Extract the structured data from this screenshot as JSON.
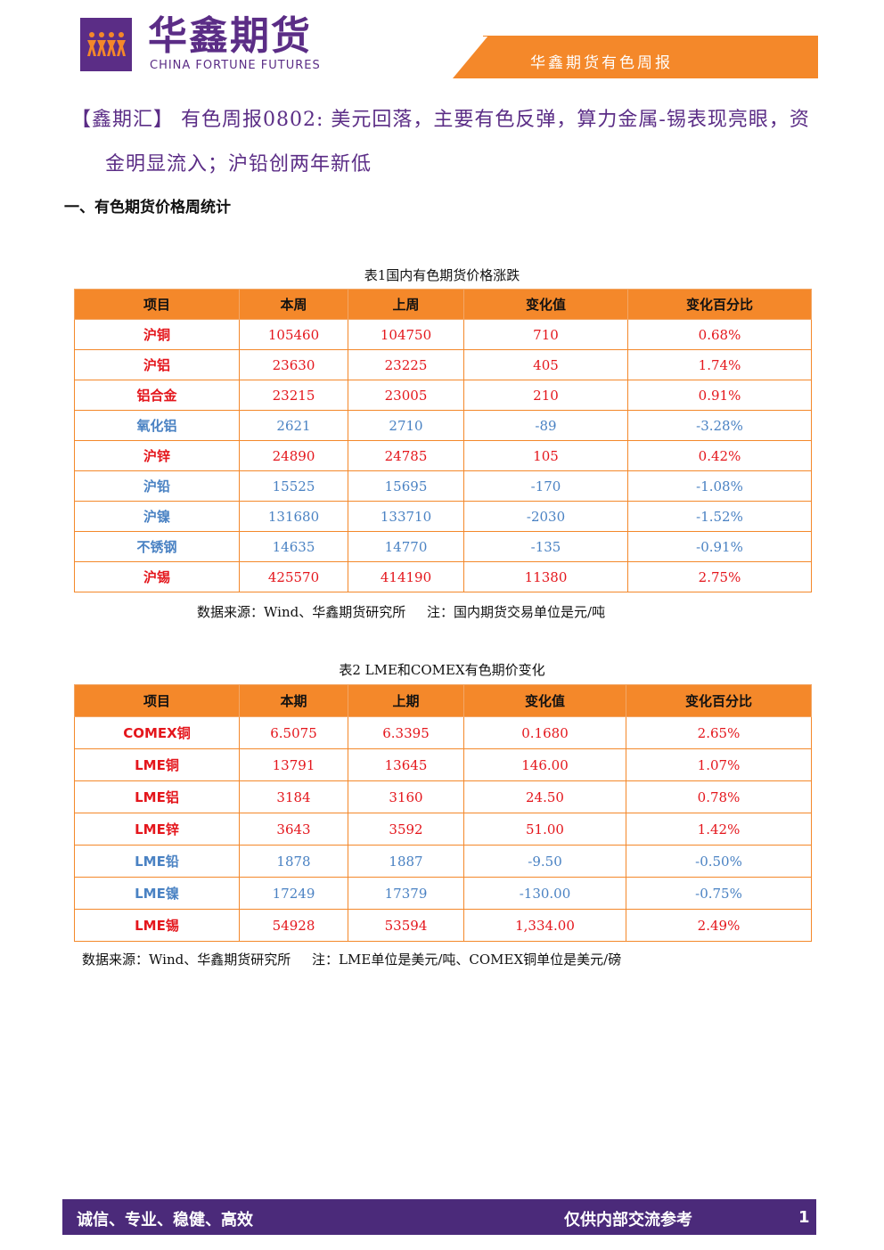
{
  "colors": {
    "brand_purple": "#5b2d86",
    "accent_orange": "#f4882a",
    "up_red": "#e4161c",
    "down_blue": "#4a82c3"
  },
  "header": {
    "logo_icon": "dancing-figures-logo-icon",
    "brand_cn": "华鑫期货",
    "brand_en": "CHINA FORTUNE FUTURES",
    "report_title": "华鑫期货有色周报"
  },
  "headline": {
    "line1": "【鑫期汇】 有色周报0802: 美元回落，主要有色反弹，算力金属-锡表现亮眼，资",
    "line2": "金明显流入；沪铅创两年新低"
  },
  "section1": {
    "title": "一、有色期货价格周统计"
  },
  "table1": {
    "caption": "表1国内有色期货价格涨跌",
    "headers": [
      "项目",
      "本周",
      "上周",
      "变化值",
      "变化百分比"
    ],
    "rows": [
      {
        "name": "沪铜",
        "cur": "105460",
        "prev": "104750",
        "chg": "710",
        "pct": "0.68%",
        "dir": "up"
      },
      {
        "name": "沪铝",
        "cur": "23630",
        "prev": "23225",
        "chg": "405",
        "pct": "1.74%",
        "dir": "up"
      },
      {
        "name": "铝合金",
        "cur": "23215",
        "prev": "23005",
        "chg": "210",
        "pct": "0.91%",
        "dir": "up"
      },
      {
        "name": "氧化铝",
        "cur": "2621",
        "prev": "2710",
        "chg": "-89",
        "pct": "-3.28%",
        "dir": "down"
      },
      {
        "name": "沪锌",
        "cur": "24890",
        "prev": "24785",
        "chg": "105",
        "pct": "0.42%",
        "dir": "up"
      },
      {
        "name": "沪铅",
        "cur": "15525",
        "prev": "15695",
        "chg": "-170",
        "pct": "-1.08%",
        "dir": "down"
      },
      {
        "name": "沪镍",
        "cur": "131680",
        "prev": "133710",
        "chg": "-2030",
        "pct": "-1.52%",
        "dir": "down"
      },
      {
        "name": "不锈钢",
        "cur": "14635",
        "prev": "14770",
        "chg": "-135",
        "pct": "-0.91%",
        "dir": "down"
      },
      {
        "name": "沪锡",
        "cur": "425570",
        "prev": "414190",
        "chg": "11380",
        "pct": "2.75%",
        "dir": "up"
      }
    ],
    "note": "数据来源：Wind、华鑫期货研究所     注：国内期货交易单位是元/吨"
  },
  "table2": {
    "caption": "表2 LME和COMEX有色期价变化",
    "headers": [
      "项目",
      "本期",
      "上期",
      "变化值",
      "变化百分比"
    ],
    "rows": [
      {
        "name": "COMEX铜",
        "cur": "6.5075",
        "prev": "6.3395",
        "chg": "0.1680",
        "pct": "2.65%",
        "dir": "up"
      },
      {
        "name": "LME铜",
        "cur": "13791",
        "prev": "13645",
        "chg": "146.00",
        "pct": "1.07%",
        "dir": "up"
      },
      {
        "name": "LME铝",
        "cur": "3184",
        "prev": "3160",
        "chg": "24.50",
        "pct": "0.78%",
        "dir": "up"
      },
      {
        "name": "LME锌",
        "cur": "3643",
        "prev": "3592",
        "chg": "51.00",
        "pct": "1.42%",
        "dir": "up"
      },
      {
        "name": "LME铅",
        "cur": "1878",
        "prev": "1887",
        "chg": "-9.50",
        "pct": "-0.50%",
        "dir": "down"
      },
      {
        "name": "LME镍",
        "cur": "17249",
        "prev": "17379",
        "chg": "-130.00",
        "pct": "-0.75%",
        "dir": "down"
      },
      {
        "name": "LME锡",
        "cur": "54928",
        "prev": "53594",
        "chg": "1,334.00",
        "pct": "2.49%",
        "dir": "up"
      }
    ],
    "note": "数据来源：Wind、华鑫期货研究所     注：LME单位是美元/吨、COMEX铜单位是美元/磅"
  },
  "footer": {
    "left": "诚信、专业、稳健、高效",
    "right": "仅供内部交流参考",
    "page": "1"
  }
}
